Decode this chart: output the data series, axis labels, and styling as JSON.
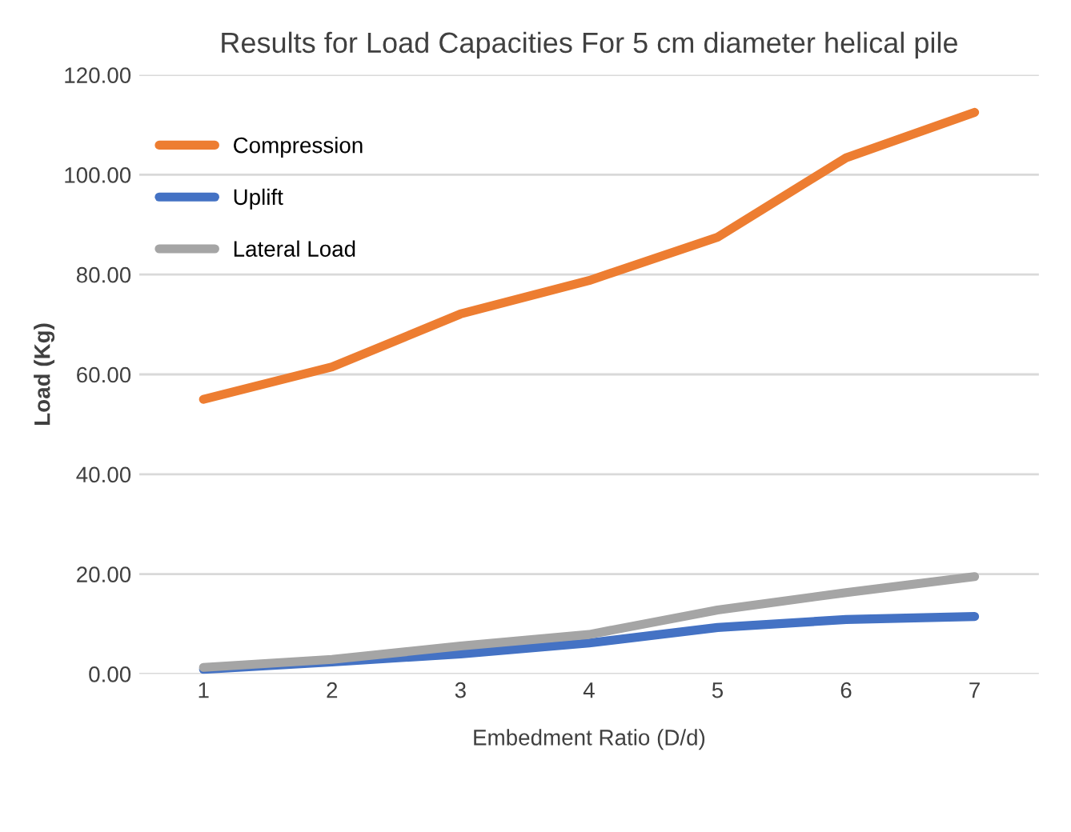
{
  "chart_data": {
    "type": "line",
    "title": "Results for Load Capacities For 5 cm diameter helical pile",
    "xlabel": "Embedment Ratio (D/d)",
    "ylabel": "Load (Kg)",
    "categories": [
      "1",
      "2",
      "3",
      "4",
      "5",
      "6",
      "7"
    ],
    "series": [
      {
        "name": "Compression",
        "color": "#ed7d31",
        "values": [
          55.0,
          61.5,
          72.1,
          78.8,
          87.5,
          103.4,
          112.5
        ]
      },
      {
        "name": "Uplift",
        "color": "#4472c4",
        "values": [
          0.9,
          2.4,
          4.0,
          6.2,
          9.3,
          10.9,
          11.5
        ]
      },
      {
        "name": "Lateral Load",
        "color": "#a5a5a5",
        "values": [
          1.3,
          2.9,
          5.6,
          7.9,
          12.8,
          16.3,
          19.5
        ]
      }
    ],
    "ylim": [
      0,
      120
    ],
    "yticks": [
      {
        "value": 0,
        "label": "0.00"
      },
      {
        "value": 20,
        "label": "20.00"
      },
      {
        "value": 40,
        "label": "40.00"
      },
      {
        "value": 60,
        "label": "60.00"
      },
      {
        "value": 80,
        "label": "80.00"
      },
      {
        "value": 100,
        "label": "100.00"
      },
      {
        "value": 120,
        "label": "120.00"
      }
    ],
    "grid": "y",
    "legend": "top left",
    "marker": "none",
    "line_style": "solid"
  }
}
